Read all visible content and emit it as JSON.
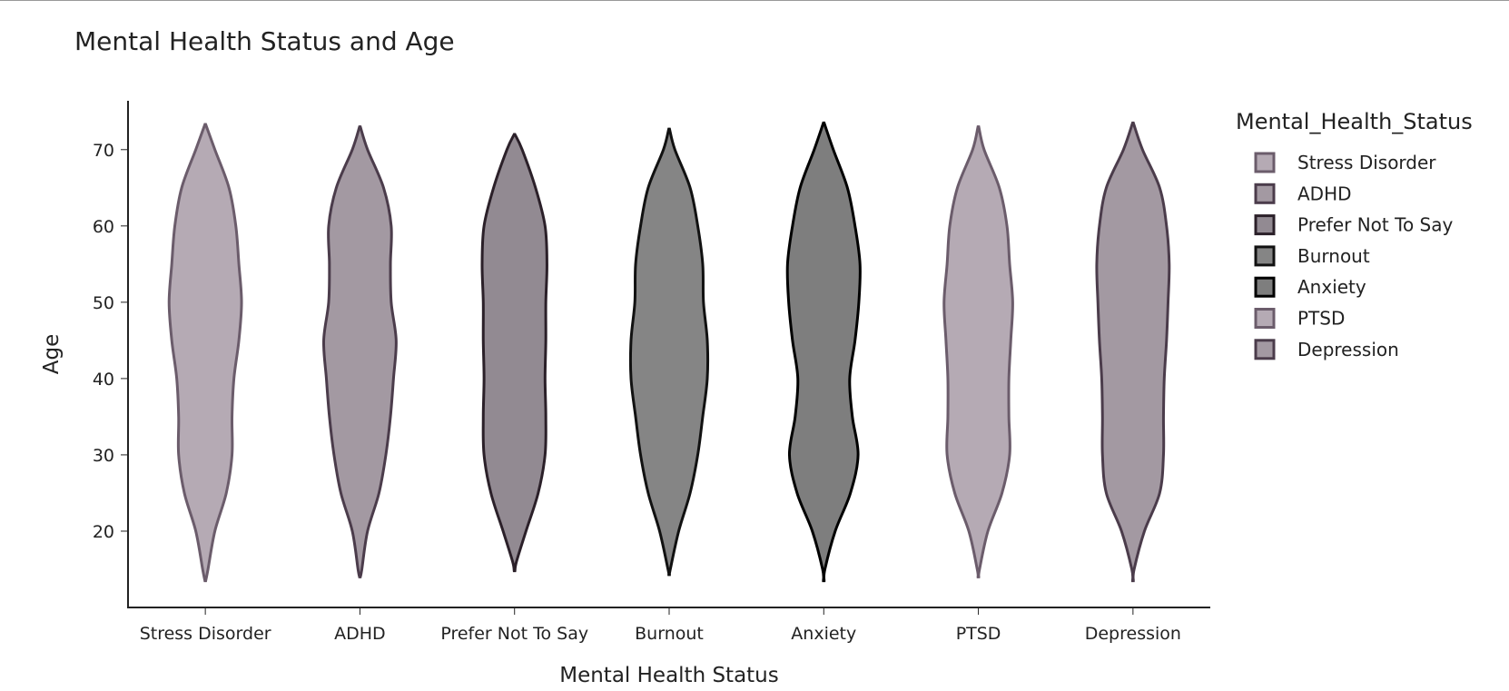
{
  "chart_data": {
    "type": "violin",
    "title": "Mental Health Status and Age",
    "xlabel": "Mental Health Status",
    "ylabel": "Age",
    "ylim": [
      10,
      76.4
    ],
    "yticks": [
      20,
      30,
      40,
      50,
      60,
      70
    ],
    "grid": false,
    "legend": {
      "title": "Mental_Health_Status",
      "placement": "right"
    },
    "categories": [
      "Stress Disorder",
      "ADHD",
      "Prefer Not To Say",
      "Burnout",
      "Anxiety",
      "PTSD",
      "Depression"
    ],
    "series": [
      {
        "name": "Stress Disorder",
        "fill": "#b5aab4",
        "line": "#6b5c6b",
        "min": 13.5,
        "max": 73.3,
        "profile": [
          [
            70,
            0.25
          ],
          [
            65,
            0.62
          ],
          [
            60,
            0.8
          ],
          [
            55,
            0.88
          ],
          [
            50,
            0.95
          ],
          [
            45,
            0.88
          ],
          [
            40,
            0.75
          ],
          [
            35,
            0.7
          ],
          [
            30,
            0.7
          ],
          [
            25,
            0.55
          ],
          [
            20,
            0.25
          ],
          [
            15,
            0.07
          ]
        ]
      },
      {
        "name": "ADHD",
        "fill": "#a399a2",
        "line": "#4b3c4b",
        "min": 14,
        "max": 73,
        "profile": [
          [
            70,
            0.2
          ],
          [
            65,
            0.62
          ],
          [
            60,
            0.82
          ],
          [
            55,
            0.8
          ],
          [
            50,
            0.82
          ],
          [
            45,
            0.95
          ],
          [
            40,
            0.88
          ],
          [
            35,
            0.8
          ],
          [
            30,
            0.68
          ],
          [
            25,
            0.5
          ],
          [
            20,
            0.2
          ],
          [
            15,
            0.05
          ]
        ]
      },
      {
        "name": "Prefer Not To Say",
        "fill": "#928a92",
        "line": "#2b2029",
        "min": 14.8,
        "max": 72,
        "profile": [
          [
            70,
            0.2
          ],
          [
            65,
            0.55
          ],
          [
            60,
            0.8
          ],
          [
            55,
            0.85
          ],
          [
            50,
            0.82
          ],
          [
            45,
            0.82
          ],
          [
            40,
            0.8
          ],
          [
            35,
            0.82
          ],
          [
            30,
            0.8
          ],
          [
            25,
            0.62
          ],
          [
            20,
            0.3
          ],
          [
            16,
            0.05
          ]
        ]
      },
      {
        "name": "Burnout",
        "fill": "#858585",
        "line": "#111111",
        "min": 14.3,
        "max": 72.7,
        "profile": [
          [
            70,
            0.15
          ],
          [
            65,
            0.55
          ],
          [
            60,
            0.75
          ],
          [
            55,
            0.88
          ],
          [
            50,
            0.9
          ],
          [
            45,
            1.0
          ],
          [
            40,
            1.0
          ],
          [
            35,
            0.88
          ],
          [
            30,
            0.75
          ],
          [
            25,
            0.55
          ],
          [
            20,
            0.25
          ],
          [
            15,
            0.03
          ]
        ]
      },
      {
        "name": "Anxiety",
        "fill": "#7e7e7e",
        "line": "#000000",
        "min": 13.5,
        "max": 73.5,
        "profile": [
          [
            70,
            0.25
          ],
          [
            65,
            0.62
          ],
          [
            60,
            0.82
          ],
          [
            55,
            0.95
          ],
          [
            50,
            0.92
          ],
          [
            45,
            0.82
          ],
          [
            40,
            0.68
          ],
          [
            35,
            0.75
          ],
          [
            30,
            0.9
          ],
          [
            25,
            0.7
          ],
          [
            20,
            0.3
          ],
          [
            15,
            0.03
          ]
        ]
      },
      {
        "name": "PTSD",
        "fill": "#b5aab4",
        "line": "#6b5c6b",
        "min": 14,
        "max": 73,
        "profile": [
          [
            70,
            0.15
          ],
          [
            65,
            0.55
          ],
          [
            60,
            0.75
          ],
          [
            55,
            0.82
          ],
          [
            50,
            0.9
          ],
          [
            45,
            0.85
          ],
          [
            40,
            0.8
          ],
          [
            35,
            0.8
          ],
          [
            30,
            0.82
          ],
          [
            25,
            0.62
          ],
          [
            20,
            0.25
          ],
          [
            15,
            0.03
          ]
        ]
      },
      {
        "name": "Depression",
        "fill": "#a399a2",
        "line": "#4b3c4b",
        "min": 13.5,
        "max": 73.5,
        "profile": [
          [
            70,
            0.25
          ],
          [
            65,
            0.7
          ],
          [
            60,
            0.88
          ],
          [
            55,
            0.95
          ],
          [
            50,
            0.92
          ],
          [
            45,
            0.88
          ],
          [
            40,
            0.82
          ],
          [
            35,
            0.8
          ],
          [
            30,
            0.8
          ],
          [
            25,
            0.7
          ],
          [
            20,
            0.3
          ],
          [
            15,
            0.03
          ]
        ]
      }
    ]
  }
}
